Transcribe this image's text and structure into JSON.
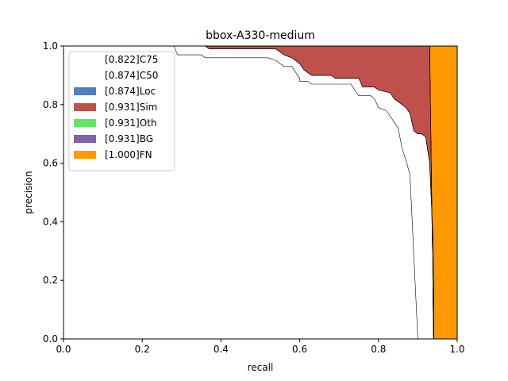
{
  "chart_data": {
    "type": "area",
    "title": "bbox-A330-medium",
    "xlabel": "recall",
    "ylabel": "precision",
    "xlim": [
      0.0,
      1.0
    ],
    "ylim": [
      0.0,
      1.0
    ],
    "xticks": [
      "0.0",
      "0.2",
      "0.4",
      "0.6",
      "0.8",
      "1.0"
    ],
    "yticks": [
      "0.0",
      "0.2",
      "0.4",
      "0.6",
      "0.8",
      "1.0"
    ],
    "legend_position": "top-left",
    "grid": false,
    "series": [
      {
        "name": "C75",
        "ap": "0.822",
        "label": "[0.822]C75",
        "fill": "#ffffff",
        "line": "#000000",
        "points": [
          [
            0,
            1
          ],
          [
            0.28,
            1
          ],
          [
            0.29,
            0.97
          ],
          [
            0.35,
            0.97
          ],
          [
            0.36,
            0.96
          ],
          [
            0.52,
            0.96
          ],
          [
            0.54,
            0.95
          ],
          [
            0.56,
            0.93
          ],
          [
            0.58,
            0.93
          ],
          [
            0.59,
            0.91
          ],
          [
            0.6,
            0.89
          ],
          [
            0.6,
            0.88
          ],
          [
            0.62,
            0.88
          ],
          [
            0.63,
            0.87
          ],
          [
            0.67,
            0.87
          ],
          [
            0.68,
            0.87
          ],
          [
            0.73,
            0.87
          ],
          [
            0.75,
            0.83
          ],
          [
            0.78,
            0.83
          ],
          [
            0.79,
            0.82
          ],
          [
            0.8,
            0.79
          ],
          [
            0.82,
            0.78
          ],
          [
            0.83,
            0.76
          ],
          [
            0.84,
            0.74
          ],
          [
            0.85,
            0.72
          ],
          [
            0.86,
            0.65
          ],
          [
            0.87,
            0.61
          ],
          [
            0.88,
            0.56
          ],
          [
            0.89,
            0.28
          ],
          [
            0.9,
            0
          ],
          [
            1,
            0
          ]
        ]
      },
      {
        "name": "C50",
        "ap": "0.874",
        "label": "[0.874]C50",
        "fill": "#ffffff",
        "line": "#000000",
        "points": [
          [
            0,
            1
          ],
          [
            0.36,
            1
          ],
          [
            0.37,
            0.99
          ],
          [
            0.54,
            0.99
          ],
          [
            0.56,
            0.97
          ],
          [
            0.58,
            0.96
          ],
          [
            0.6,
            0.94
          ],
          [
            0.61,
            0.92
          ],
          [
            0.63,
            0.9
          ],
          [
            0.68,
            0.9
          ],
          [
            0.69,
            0.89
          ],
          [
            0.75,
            0.89
          ],
          [
            0.76,
            0.86
          ],
          [
            0.79,
            0.86
          ],
          [
            0.8,
            0.85
          ],
          [
            0.83,
            0.84
          ],
          [
            0.84,
            0.82
          ],
          [
            0.86,
            0.8
          ],
          [
            0.87,
            0.79
          ],
          [
            0.88,
            0.77
          ],
          [
            0.89,
            0.71
          ],
          [
            0.9,
            0.7
          ],
          [
            0.91,
            0.7
          ],
          [
            0.92,
            0.69
          ],
          [
            0.93,
            0.6
          ],
          [
            0.94,
            0.3
          ],
          [
            0.941,
            0
          ],
          [
            1,
            0
          ]
        ]
      },
      {
        "name": "Loc",
        "ap": "0.874",
        "label": "[0.874]Loc",
        "fill": "#4f7fbf",
        "line": "#000000",
        "points": [
          [
            0,
            1
          ],
          [
            0.36,
            1
          ],
          [
            0.37,
            0.99
          ],
          [
            0.54,
            0.99
          ],
          [
            0.56,
            0.97
          ],
          [
            0.58,
            0.96
          ],
          [
            0.6,
            0.94
          ],
          [
            0.61,
            0.92
          ],
          [
            0.63,
            0.9
          ],
          [
            0.68,
            0.9
          ],
          [
            0.69,
            0.89
          ],
          [
            0.75,
            0.89
          ],
          [
            0.76,
            0.86
          ],
          [
            0.79,
            0.86
          ],
          [
            0.8,
            0.85
          ],
          [
            0.83,
            0.84
          ],
          [
            0.84,
            0.82
          ],
          [
            0.86,
            0.8
          ],
          [
            0.87,
            0.79
          ],
          [
            0.88,
            0.77
          ],
          [
            0.89,
            0.71
          ],
          [
            0.9,
            0.7
          ],
          [
            0.91,
            0.7
          ],
          [
            0.92,
            0.69
          ],
          [
            0.93,
            0.6
          ],
          [
            0.94,
            0.3
          ],
          [
            0.941,
            0
          ],
          [
            1,
            0
          ]
        ]
      },
      {
        "name": "Sim",
        "ap": "0.931",
        "label": "[0.931]Sim",
        "fill": "#c0504d",
        "line": "#000000",
        "points": [
          [
            0,
            1
          ],
          [
            0.93,
            1
          ],
          [
            0.94,
            0
          ],
          [
            1,
            0
          ]
        ]
      },
      {
        "name": "Oth",
        "ap": "0.931",
        "label": "[0.931]Oth",
        "fill": "#5fe85f",
        "line": "#000000",
        "points": [
          [
            0,
            1
          ],
          [
            0.93,
            1
          ],
          [
            0.94,
            0
          ],
          [
            1,
            0
          ]
        ]
      },
      {
        "name": "BG",
        "ap": "0.931",
        "label": "[0.931]BG",
        "fill": "#7f62a9",
        "line": "#000000",
        "points": [
          [
            0,
            1
          ],
          [
            0.93,
            1
          ],
          [
            0.94,
            0
          ],
          [
            1,
            0
          ]
        ]
      },
      {
        "name": "FN",
        "ap": "1.000",
        "label": "[1.000]FN",
        "fill": "#ff9900",
        "line": "#000000",
        "points": [
          [
            0,
            1
          ],
          [
            1,
            1
          ],
          [
            1,
            0
          ]
        ]
      }
    ]
  }
}
